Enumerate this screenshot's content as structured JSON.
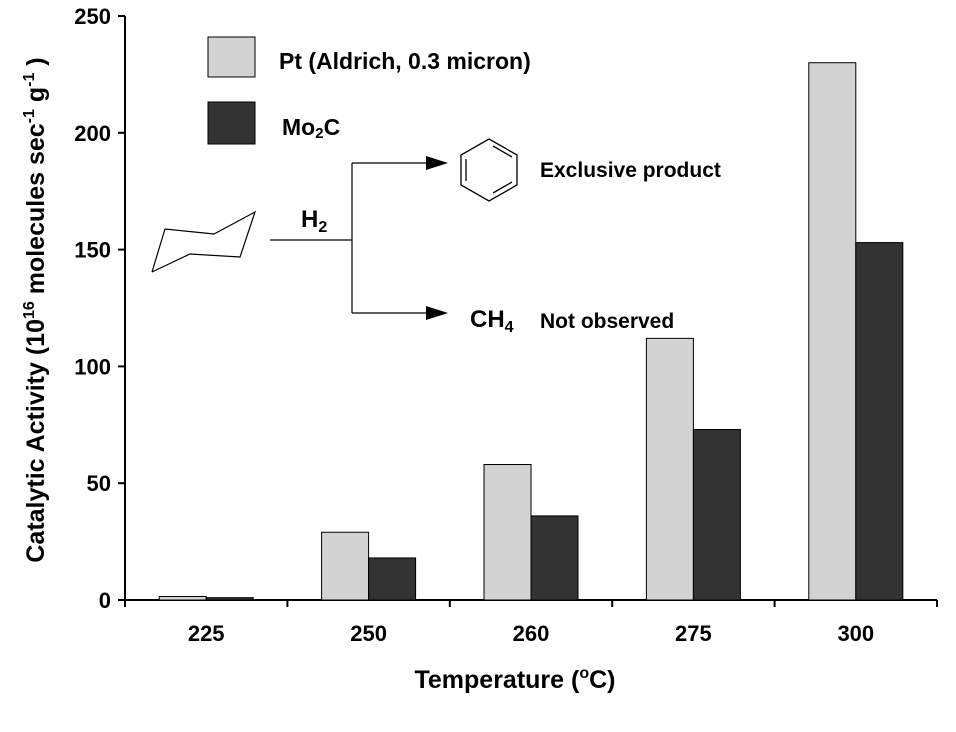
{
  "chart_data": {
    "type": "bar",
    "categories": [
      "225",
      "250",
      "260",
      "275",
      "300"
    ],
    "series": [
      {
        "name": "Pt (Aldrich, 0.3 micron)",
        "values": [
          1.5,
          29,
          58,
          112,
          230
        ],
        "color": "#d3d3d3"
      },
      {
        "name": "Mo2C",
        "values": [
          1,
          18,
          36,
          73,
          153
        ],
        "color": "#333333"
      }
    ],
    "title": "",
    "xlabel": "Temperature (oC)",
    "xlabel_parts": {
      "main": "Temperature (",
      "sup": "o",
      "end": "C)"
    },
    "ylabel": "Catalytic Activity (1016 molecules sec-1 g-1 )",
    "ylabel_parts": {
      "pre": "Catalytic Activity (10",
      "sup1": "16",
      "mid": " molecules sec",
      "sup2": "-1",
      "mid2": " g",
      "sup3": "-1",
      "end": " )"
    },
    "ylim": [
      0,
      250
    ],
    "yticks": [
      0,
      50,
      100,
      150,
      200,
      250
    ],
    "grid": false,
    "legend_position": "top-left",
    "legend": [
      {
        "label": "Pt (Aldrich, 0.3 micron)",
        "color": "#d3d3d3"
      },
      {
        "label_main": "Mo",
        "label_sub": "2",
        "label_end": "C",
        "color": "#333333"
      }
    ],
    "annotations": {
      "reactant_label": {
        "main": "H",
        "sub": "2"
      },
      "product_label": "Exclusive product",
      "methane_label": {
        "main": "CH",
        "sub": "4"
      },
      "methane_note": "Not observed",
      "icons": [
        "cyclohexane-structure",
        "benzene-ring",
        "arrow"
      ]
    }
  }
}
